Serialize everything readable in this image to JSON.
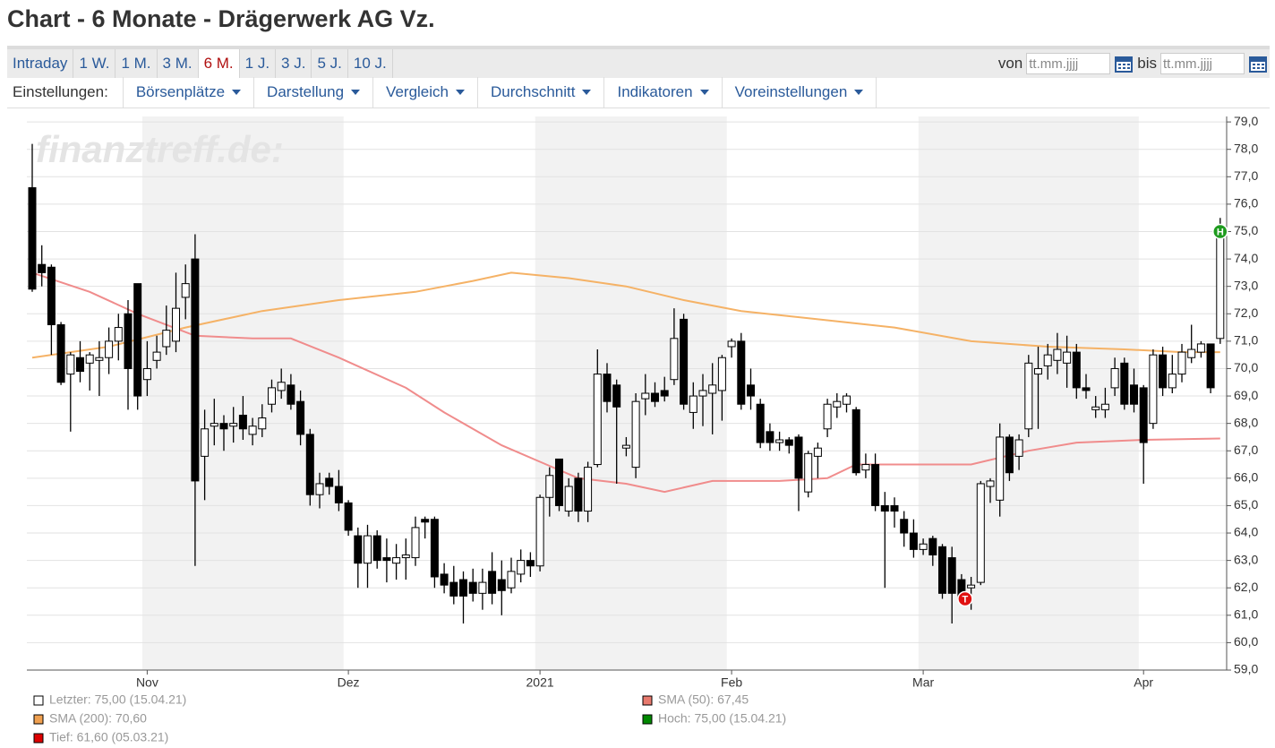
{
  "page": {
    "title": "Chart - 6 Monate - Drägerwerk AG Vz.",
    "tabs": [
      "Intraday",
      "1 W.",
      "1 M.",
      "3 M.",
      "6 M.",
      "1 J.",
      "3 J.",
      "5 J.",
      "10 J."
    ],
    "active_tab": 4,
    "date_from_label": "von",
    "date_to_label": "bis",
    "date_placeholder": "tt.mm.jjjj",
    "settings_label": "Einstellungen:",
    "menus": [
      "Börsenplätze",
      "Darstellung",
      "Vergleich",
      "Durchschnitt",
      "Indikatoren",
      "Voreinstellungen"
    ]
  },
  "chart_data": {
    "type": "candlestick",
    "watermark": "finanztreff.de:",
    "categories": [
      null,
      null,
      null,
      null,
      null,
      null,
      null,
      null,
      null,
      null,
      null,
      null,
      "Nov",
      null,
      null,
      null,
      null,
      null,
      null,
      null,
      null,
      null,
      null,
      null,
      null,
      null,
      null,
      null,
      null,
      null,
      null,
      null,
      null,
      "Dez",
      null,
      null,
      null,
      null,
      null,
      null,
      null,
      null,
      null,
      null,
      null,
      null,
      null,
      null,
      null,
      null,
      null,
      null,
      null,
      "2021",
      null,
      null,
      null,
      null,
      null,
      null,
      null,
      null,
      null,
      null,
      null,
      null,
      null,
      null,
      null,
      null,
      null,
      null,
      null,
      "Feb",
      null,
      null,
      null,
      null,
      null,
      null,
      null,
      null,
      null,
      null,
      null,
      null,
      null,
      null,
      null,
      null,
      null,
      null,
      null,
      "Mar",
      null,
      null,
      null,
      null,
      null,
      null,
      null,
      null,
      null,
      null,
      null,
      null,
      null,
      null,
      null,
      null,
      null,
      null,
      null,
      null,
      null,
      null,
      "Apr",
      null,
      null,
      null,
      null,
      null,
      null,
      null,
      null
    ],
    "candles": {
      "open": [
        76.6,
        73.8,
        73.7,
        71.6,
        69.8,
        70.4,
        70.2,
        70.3,
        70.4,
        71.0,
        72.0,
        73.1,
        69.6,
        70.3,
        70.8,
        71.0,
        72.6,
        74.0,
        66.8,
        67.9,
        68.0,
        67.9,
        68.3,
        67.6,
        67.8,
        68.7,
        69.2,
        69.4,
        68.8,
        67.6,
        65.4,
        66.0,
        65.7,
        65.1,
        63.9,
        62.9,
        63.9,
        63.1,
        62.9,
        63.1,
        63.1,
        64.5,
        64.5,
        62.5,
        62.2,
        62.3,
        62.2,
        61.8,
        62.6,
        62.3,
        62.0,
        62.5,
        63.0,
        62.8,
        65.3,
        66.7,
        64.8,
        66.0,
        64.8,
        66.5,
        69.8,
        69.4,
        67.1,
        66.4,
        68.9,
        69.1,
        69.2,
        69.6,
        71.8,
        68.4,
        69.0,
        69.1,
        69.2,
        70.8,
        71.0,
        69.4,
        68.7,
        67.7,
        67.3,
        67.4,
        67.5,
        65.5,
        66.8,
        67.8,
        68.6,
        68.7,
        68.5,
        66.3,
        66.5,
        65.0,
        65.0,
        64.5,
        64.0,
        63.4,
        63.8,
        63.5,
        63.1,
        62.3,
        62.0,
        62.2,
        65.7,
        65.2,
        67.5,
        66.8,
        67.8,
        69.8,
        70.1,
        70.3,
        70.2,
        70.6,
        69.3,
        68.5,
        68.5,
        69.3,
        70.2,
        69.4,
        69.3,
        68.0,
        70.5,
        69.3,
        69.8,
        70.4,
        70.6,
        70.9,
        71.1
      ],
      "high": [
        78.2,
        74.5,
        73.8,
        71.7,
        70.6,
        71.0,
        70.6,
        71.0,
        71.5,
        72.0,
        72.5,
        73.1,
        71.0,
        71.2,
        72.3,
        73.5,
        73.8,
        74.9,
        68.5,
        68.9,
        68.3,
        68.6,
        69.0,
        68.2,
        68.7,
        69.6,
        70.0,
        69.8,
        69.2,
        67.8,
        66.2,
        66.2,
        66.3,
        65.2,
        64.2,
        64.3,
        64.1,
        63.8,
        63.6,
        63.8,
        64.6,
        64.6,
        64.6,
        62.9,
        62.8,
        62.6,
        62.7,
        62.7,
        63.3,
        63.0,
        63.1,
        63.4,
        63.3,
        65.4,
        66.4,
        66.7,
        66.0,
        66.2,
        66.6,
        70.7,
        70.2,
        69.6,
        67.5,
        69.1,
        69.8,
        69.5,
        69.7,
        72.2,
        72.0,
        69.5,
        69.8,
        70.2,
        70.5,
        71.1,
        71.3,
        70.0,
        68.9,
        68.0,
        67.7,
        67.5,
        67.6,
        67.0,
        67.3,
        68.9,
        69.1,
        69.1,
        68.6,
        66.9,
        66.9,
        65.5,
        65.3,
        64.8,
        64.5,
        63.8,
        63.9,
        63.6,
        63.5,
        62.5,
        62.4,
        65.9,
        66.0,
        68.0,
        67.6,
        67.6,
        70.5,
        70.8,
        70.9,
        71.3,
        71.2,
        70.9,
        69.8,
        69.0,
        69.3,
        70.4,
        70.4,
        70.0,
        69.4,
        70.7,
        70.8,
        70.5,
        70.9,
        71.6,
        71.0,
        70.9,
        75.5
      ],
      "low": [
        72.8,
        73.0,
        70.5,
        69.4,
        67.7,
        69.5,
        69.2,
        69.0,
        69.8,
        70.3,
        68.5,
        68.5,
        69.0,
        70.0,
        70.5,
        70.6,
        71.8,
        62.8,
        65.2,
        67.2,
        67.0,
        67.3,
        67.4,
        67.2,
        67.5,
        68.4,
        68.9,
        68.5,
        67.2,
        65.0,
        64.9,
        65.4,
        64.8,
        63.9,
        62.0,
        62.0,
        62.7,
        62.2,
        62.3,
        62.3,
        62.8,
        63.8,
        62.0,
        61.8,
        61.4,
        60.7,
        61.5,
        61.2,
        61.4,
        61.0,
        61.8,
        62.2,
        62.4,
        62.6,
        64.6,
        64.8,
        64.6,
        64.4,
        64.4,
        66.4,
        68.4,
        65.8,
        66.8,
        66.0,
        68.3,
        68.6,
        68.8,
        69.4,
        68.5,
        67.8,
        67.9,
        67.6,
        68.1,
        70.4,
        68.5,
        68.5,
        67.1,
        67.0,
        67.0,
        66.9,
        64.8,
        65.3,
        66.0,
        67.5,
        68.2,
        68.4,
        66.1,
        66.0,
        64.8,
        62.0,
        64.2,
        63.5,
        63.1,
        63.2,
        62.8,
        61.6,
        60.7,
        61.4,
        61.2,
        62.1,
        65.1,
        64.6,
        65.9,
        66.3,
        67.5,
        67.8,
        69.6,
        69.8,
        69.3,
        68.9,
        68.9,
        68.2,
        68.2,
        69.0,
        68.5,
        68.4,
        65.8,
        67.8,
        69.0,
        69.1,
        69.5,
        70.2,
        70.4,
        69.1,
        70.9
      ],
      "close": [
        72.9,
        73.5,
        71.6,
        69.5,
        70.5,
        69.9,
        70.5,
        70.4,
        71.0,
        71.5,
        70.0,
        69.0,
        70.0,
        70.6,
        71.4,
        72.2,
        73.1,
        65.9,
        67.8,
        68.0,
        67.8,
        68.0,
        67.8,
        67.9,
        68.2,
        69.3,
        69.5,
        68.7,
        67.6,
        65.4,
        65.8,
        65.7,
        65.1,
        64.1,
        62.9,
        63.9,
        63.0,
        63.0,
        63.1,
        63.2,
        64.2,
        64.4,
        62.4,
        62.1,
        61.7,
        61.7,
        61.8,
        62.2,
        61.8,
        61.9,
        62.6,
        63.0,
        62.8,
        65.3,
        66.1,
        65.0,
        65.7,
        64.8,
        66.4,
        69.8,
        68.8,
        68.6,
        67.2,
        68.8,
        69.1,
        68.8,
        69.0,
        71.1,
        68.7,
        69.0,
        69.2,
        69.4,
        70.4,
        71.0,
        68.7,
        69.0,
        67.3,
        67.3,
        67.4,
        67.2,
        66.0,
        66.9,
        67.1,
        68.7,
        68.8,
        69.0,
        66.2,
        66.5,
        65.0,
        64.8,
        64.8,
        64.0,
        63.4,
        63.6,
        63.2,
        61.8,
        61.8,
        61.6,
        62.1,
        65.8,
        65.9,
        67.5,
        66.2,
        67.4,
        70.2,
        70.0,
        70.5,
        70.7,
        70.6,
        69.3,
        69.2,
        68.6,
        68.7,
        70.0,
        68.7,
        68.7,
        67.3,
        70.5,
        69.3,
        69.8,
        70.6,
        70.7,
        70.9,
        69.3,
        75.0
      ]
    },
    "series": [
      {
        "name": "SMA (200)",
        "color": "#f5b266",
        "x": [
          0,
          8,
          16,
          24,
          32,
          40,
          46,
          50,
          56,
          62,
          68,
          74,
          82,
          90,
          98,
          106,
          114,
          120,
          124
        ],
        "values": [
          70.4,
          70.8,
          71.5,
          72.1,
          72.5,
          72.8,
          73.2,
          73.5,
          73.3,
          73.0,
          72.5,
          72.1,
          71.8,
          71.5,
          71.0,
          70.8,
          70.7,
          70.6,
          70.6
        ]
      },
      {
        "name": "SMA (50)",
        "color": "#f08c8c",
        "x": [
          0,
          6,
          11,
          17,
          23,
          27,
          32,
          39,
          43,
          49,
          53,
          57,
          62,
          66,
          71,
          78,
          83,
          86,
          90,
          98,
          104,
          109,
          116,
          124
        ],
        "values": [
          73.5,
          72.8,
          72.0,
          71.2,
          71.1,
          71.1,
          70.4,
          69.3,
          68.4,
          67.2,
          66.6,
          66.0,
          65.8,
          65.5,
          65.9,
          65.9,
          66.0,
          66.5,
          66.5,
          66.5,
          67.0,
          67.3,
          67.4,
          67.45
        ]
      }
    ],
    "high_marker": {
      "label": "H",
      "value": 75.0,
      "color": "#1e9b1e"
    },
    "low_marker": {
      "label": "T",
      "value": 61.6,
      "color": "#e01010"
    },
    "ylim": [
      59,
      79.2
    ],
    "yticks": [
      {
        "value": 59,
        "label": "59,0"
      },
      {
        "value": 60,
        "label": "60,0"
      },
      {
        "value": 61,
        "label": "61,0"
      },
      {
        "value": 62,
        "label": "62,0"
      },
      {
        "value": 63,
        "label": "63,0"
      },
      {
        "value": 64,
        "label": "64,0"
      },
      {
        "value": 65,
        "label": "65,0"
      },
      {
        "value": 66,
        "label": "66,0"
      },
      {
        "value": 67,
        "label": "67,0"
      },
      {
        "value": 68,
        "label": "68,0"
      },
      {
        "value": 69,
        "label": "69,0"
      },
      {
        "value": 70,
        "label": "70,0"
      },
      {
        "value": 71,
        "label": "71,0"
      },
      {
        "value": 72,
        "label": "72,0"
      },
      {
        "value": 73,
        "label": "73,0"
      },
      {
        "value": 74,
        "label": "74,0"
      },
      {
        "value": 75,
        "label": "75,0"
      },
      {
        "value": 76,
        "label": "76,0"
      },
      {
        "value": 77,
        "label": "77,0"
      },
      {
        "value": 78,
        "label": "78,0"
      },
      {
        "value": 79,
        "label": "79,0"
      }
    ],
    "grid": true,
    "legend": [
      {
        "label": "Letzter: 75,00 (15.04.21)",
        "color": "#ffffff"
      },
      {
        "label": "SMA (200): 70,60",
        "color": "#f0a050"
      },
      {
        "label": "Tief: 61,60 (05.03.21)",
        "color": "#dd0000"
      },
      {
        "label": "SMA (50): 67,45",
        "color": "#e87a6e"
      },
      {
        "label": "Hoch: 75,00 (15.04.21)",
        "color": "#008800"
      }
    ]
  }
}
